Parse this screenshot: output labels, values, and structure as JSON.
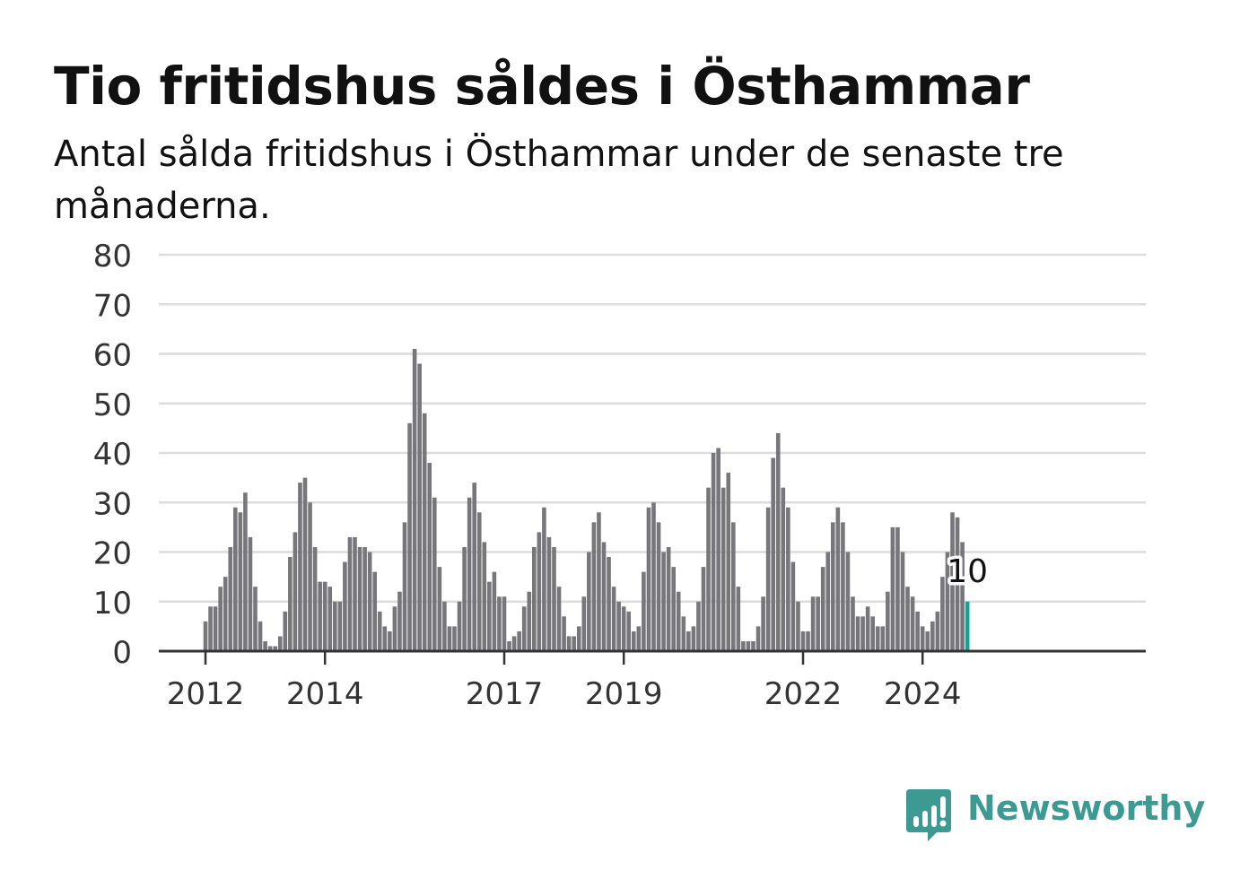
{
  "title": "Tio fritidshus såldes i Östhammar",
  "subtitle": "Antal sålda fritidshus i Östhammar under de senaste tre månaderna.",
  "brand": {
    "name": "Newsworthy",
    "icon": "bar-chart-speech-bubble-icon",
    "color": "#3d9a93"
  },
  "chart_data": {
    "type": "bar",
    "title": "Tio fritidshus såldes i Östhammar",
    "subtitle": "Antal sålda fritidshus i Östhammar under de senaste tre månaderna.",
    "xlabel": "",
    "ylabel": "",
    "ylim": [
      0,
      80
    ],
    "yticks": [
      0,
      10,
      20,
      30,
      40,
      50,
      60,
      70,
      80
    ],
    "xticks": [
      "2012",
      "2014",
      "2017",
      "2019",
      "2022",
      "2024"
    ],
    "start": "2012-01",
    "frequency": "monthly",
    "grid": true,
    "values": [
      6,
      9,
      9,
      13,
      15,
      21,
      29,
      28,
      32,
      23,
      13,
      6,
      2,
      1,
      1,
      3,
      8,
      19,
      24,
      34,
      35,
      30,
      21,
      14,
      14,
      13,
      10,
      10,
      18,
      23,
      23,
      21,
      21,
      20,
      16,
      8,
      5,
      4,
      9,
      12,
      26,
      46,
      61,
      58,
      48,
      38,
      31,
      17,
      10,
      5,
      5,
      10,
      21,
      31,
      34,
      28,
      22,
      14,
      16,
      11,
      11,
      2,
      3,
      4,
      9,
      12,
      21,
      24,
      29,
      23,
      21,
      13,
      7,
      3,
      3,
      5,
      11,
      20,
      26,
      28,
      22,
      19,
      13,
      10,
      9,
      8,
      4,
      5,
      16,
      29,
      30,
      26,
      20,
      21,
      17,
      12,
      7,
      4,
      5,
      10,
      17,
      33,
      40,
      41,
      33,
      36,
      26,
      13,
      2,
      2,
      2,
      5,
      11,
      29,
      39,
      44,
      33,
      29,
      18,
      10,
      4,
      4,
      11,
      11,
      17,
      20,
      26,
      29,
      26,
      20,
      11,
      7,
      7,
      9,
      7,
      5,
      5,
      12,
      25,
      25,
      20,
      13,
      11,
      8,
      5,
      4,
      6,
      8,
      15,
      20,
      28,
      27,
      22,
      10
    ],
    "highlight": {
      "label": "10",
      "value": 10,
      "color": "#1a9e8f"
    },
    "bar_color": "#77767b"
  }
}
